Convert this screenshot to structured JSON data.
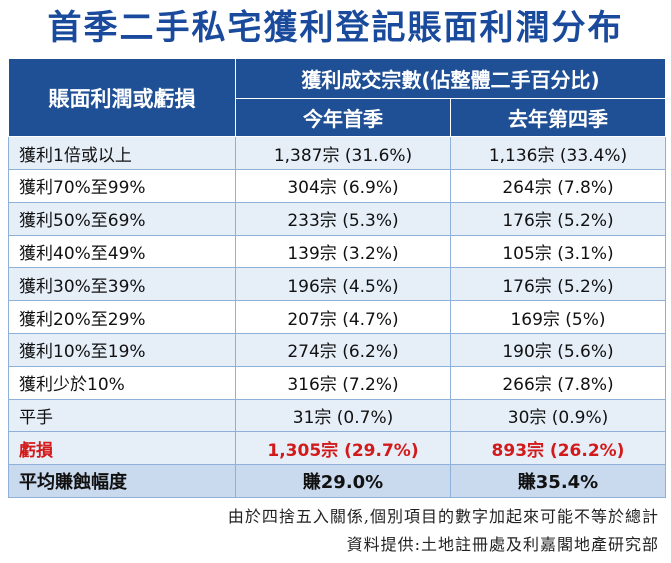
{
  "title": "首季二手私宅獲利登記賬面利潤分布",
  "header": {
    "row_label": "賬面利潤或虧損",
    "group_label": "獲利成交宗數(佔整體二手百分比)",
    "col_current": "今年首季",
    "col_previous": "去年第四季"
  },
  "rows": [
    {
      "label": "獲利1倍或以上",
      "current": "1,387宗 (31.6%)",
      "previous": "1,136宗 (33.4%)"
    },
    {
      "label": "獲利70%至99%",
      "current": "304宗 (6.9%)",
      "previous": "264宗 (7.8%)"
    },
    {
      "label": "獲利50%至69%",
      "current": "233宗 (5.3%)",
      "previous": "176宗 (5.2%)"
    },
    {
      "label": "獲利40%至49%",
      "current": "139宗 (3.2%)",
      "previous": "105宗 (3.1%)"
    },
    {
      "label": "獲利30%至39%",
      "current": "196宗 (4.5%)",
      "previous": "176宗 (5.2%)"
    },
    {
      "label": "獲利20%至29%",
      "current": "207宗 (4.7%)",
      "previous": "169宗 (5%)"
    },
    {
      "label": "獲利10%至19%",
      "current": "274宗 (6.2%)",
      "previous": "190宗 (5.6%)"
    },
    {
      "label": "獲利少於10%",
      "current": "316宗 (7.2%)",
      "previous": "266宗 (7.8%)"
    },
    {
      "label": "平手",
      "current": "31宗 (0.7%)",
      "previous": "30宗 (0.9%)"
    },
    {
      "label": "虧損",
      "current": "1,305宗 (29.7%)",
      "previous": "893宗 (26.2%)"
    },
    {
      "label": "平均賺蝕幅度",
      "current": "賺29.0%",
      "previous": "賺35.4%"
    }
  ],
  "notes": {
    "rounding": "由於四捨五入關係,個別項目的數字加起來可能不等於總計",
    "source": "資料提供:土地註冊處及利嘉閣地產研究部"
  },
  "colors": {
    "title": "#1a4a9c",
    "header_bg": "#1f4f95",
    "loss_text": "#d31a1a"
  }
}
